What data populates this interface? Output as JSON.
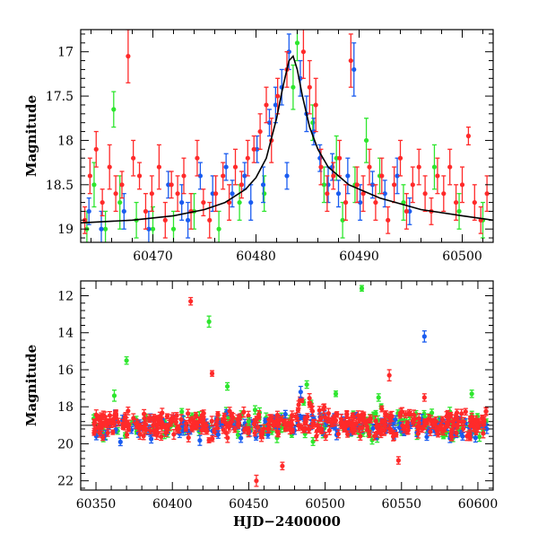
{
  "chart_data": [
    {
      "type": "scatter",
      "title": "",
      "xlabel": "",
      "ylabel": "Magnitude",
      "xlim": [
        60463,
        60503
      ],
      "ylim": [
        19.15,
        16.75
      ],
      "y_inverted": true,
      "grid": false,
      "xticks": [
        60470,
        60480,
        60490,
        60500
      ],
      "yticks": [
        17,
        17.5,
        18,
        18.5,
        19
      ],
      "series": [
        {
          "color": "#ff2a2a",
          "points": [
            [
              60463.4,
              18.9,
              0.15
            ],
            [
              60463.9,
              18.4,
              0.2
            ],
            [
              60464.5,
              18.1,
              0.2
            ],
            [
              60465.1,
              18.7,
              0.15
            ],
            [
              60465.8,
              18.3,
              0.25
            ],
            [
              60466.4,
              18.6,
              0.2
            ],
            [
              60467.0,
              18.5,
              0.15
            ],
            [
              60467.6,
              17.05,
              0.3
            ],
            [
              60468.1,
              18.2,
              0.2
            ],
            [
              60468.7,
              18.4,
              0.15
            ],
            [
              60469.3,
              18.8,
              0.2
            ],
            [
              60469.9,
              18.6,
              0.2
            ],
            [
              60470.6,
              18.3,
              0.25
            ],
            [
              60471.2,
              18.9,
              0.2
            ],
            [
              60471.8,
              18.5,
              0.15
            ],
            [
              60472.4,
              18.6,
              0.2
            ],
            [
              60473.0,
              18.4,
              0.2
            ],
            [
              60473.7,
              18.8,
              0.2
            ],
            [
              60474.3,
              18.2,
              0.2
            ],
            [
              60474.9,
              18.7,
              0.15
            ],
            [
              60475.5,
              18.9,
              0.2
            ],
            [
              60476.1,
              18.6,
              0.2
            ],
            [
              60476.8,
              18.4,
              0.15
            ],
            [
              60477.4,
              18.7,
              0.2
            ],
            [
              60478.0,
              18.3,
              0.2
            ],
            [
              60478.6,
              18.5,
              0.15
            ],
            [
              60479.2,
              18.2,
              0.2
            ],
            [
              60479.8,
              18.1,
              0.15
            ],
            [
              60480.4,
              17.9,
              0.2
            ],
            [
              60481.0,
              17.6,
              0.2
            ],
            [
              60481.5,
              18.0,
              0.25
            ],
            [
              60482.1,
              17.5,
              0.2
            ],
            [
              60483.0,
              17.2,
              0.2
            ],
            [
              60484.6,
              17.0,
              0.3
            ],
            [
              60485.2,
              17.4,
              0.3
            ],
            [
              60485.8,
              17.6,
              0.3
            ],
            [
              60486.3,
              18.3,
              0.2
            ],
            [
              60486.9,
              18.6,
              0.2
            ],
            [
              60487.5,
              18.4,
              0.15
            ],
            [
              60488.1,
              18.2,
              0.2
            ],
            [
              60488.7,
              18.7,
              0.2
            ],
            [
              60489.2,
              17.1,
              0.3
            ],
            [
              60489.8,
              18.5,
              0.2
            ],
            [
              60490.4,
              18.6,
              0.2
            ],
            [
              60491.0,
              18.3,
              0.2
            ],
            [
              60491.6,
              18.7,
              0.2
            ],
            [
              60492.2,
              18.4,
              0.2
            ],
            [
              60492.8,
              18.9,
              0.15
            ],
            [
              60493.4,
              18.5,
              0.2
            ],
            [
              60494.0,
              18.2,
              0.2
            ],
            [
              60494.6,
              18.8,
              0.2
            ],
            [
              60495.2,
              18.5,
              0.2
            ],
            [
              60495.8,
              18.3,
              0.2
            ],
            [
              60496.4,
              18.6,
              0.2
            ],
            [
              60497.0,
              18.8,
              0.15
            ],
            [
              60497.6,
              18.4,
              0.2
            ],
            [
              60498.2,
              18.6,
              0.2
            ],
            [
              60498.8,
              18.3,
              0.2
            ],
            [
              60499.4,
              18.7,
              0.2
            ],
            [
              60500.0,
              18.5,
              0.2
            ],
            [
              60500.6,
              17.95,
              0.1
            ],
            [
              60501.2,
              18.7,
              0.2
            ],
            [
              60501.8,
              18.9,
              0.15
            ],
            [
              60502.4,
              18.6,
              0.2
            ]
          ]
        },
        {
          "color": "#2ee62e",
          "points": [
            [
              60463.6,
              19.0,
              0.2
            ],
            [
              60464.3,
              18.5,
              0.25
            ],
            [
              60465.4,
              19.0,
              0.2
            ],
            [
              60466.2,
              17.65,
              0.2
            ],
            [
              60466.8,
              18.7,
              0.3
            ],
            [
              60468.4,
              18.9,
              0.2
            ],
            [
              60470.0,
              19.0,
              0.25
            ],
            [
              60472.0,
              19.0,
              0.2
            ],
            [
              60474.0,
              18.8,
              0.2
            ],
            [
              60476.4,
              19.0,
              0.2
            ],
            [
              60478.4,
              18.7,
              0.2
            ],
            [
              60480.8,
              18.6,
              0.2
            ],
            [
              60483.6,
              17.4,
              0.25
            ],
            [
              60484.0,
              16.9,
              0.2
            ],
            [
              60485.5,
              17.8,
              0.2
            ],
            [
              60486.6,
              18.5,
              0.2
            ],
            [
              60487.8,
              18.2,
              0.25
            ],
            [
              60488.4,
              18.9,
              0.2
            ],
            [
              60489.6,
              18.5,
              0.2
            ],
            [
              60490.7,
              18.0,
              0.25
            ],
            [
              60492.0,
              18.4,
              0.2
            ],
            [
              60494.3,
              18.7,
              0.2
            ],
            [
              60497.3,
              18.3,
              0.25
            ],
            [
              60499.7,
              18.8,
              0.2
            ],
            [
              60502.0,
              18.9,
              0.2
            ]
          ]
        },
        {
          "color": "#1a5cf0",
          "points": [
            [
              60463.8,
              18.8,
              0.15
            ],
            [
              60465.0,
              19.0,
              0.2
            ],
            [
              60467.2,
              18.8,
              0.2
            ],
            [
              60469.6,
              19.0,
              0.2
            ],
            [
              60471.5,
              18.5,
              0.15
            ],
            [
              60472.8,
              18.7,
              0.2
            ],
            [
              60473.4,
              18.9,
              0.2
            ],
            [
              60474.6,
              18.4,
              0.15
            ],
            [
              60475.8,
              18.6,
              0.2
            ],
            [
              60477.1,
              18.3,
              0.15
            ],
            [
              60477.7,
              18.6,
              0.15
            ],
            [
              60478.9,
              18.4,
              0.15
            ],
            [
              60479.5,
              18.7,
              0.2
            ],
            [
              60480.1,
              18.1,
              0.15
            ],
            [
              60480.7,
              18.5,
              0.2
            ],
            [
              60481.3,
              17.8,
              0.15
            ],
            [
              60481.9,
              17.6,
              0.2
            ],
            [
              60482.5,
              17.4,
              0.2
            ],
            [
              60483.0,
              18.4,
              0.15
            ],
            [
              60483.2,
              17.0,
              0.2
            ],
            [
              60484.3,
              17.3,
              0.2
            ],
            [
              60484.9,
              17.7,
              0.2
            ],
            [
              60485.6,
              17.9,
              0.15
            ],
            [
              60486.2,
              18.2,
              0.15
            ],
            [
              60487.0,
              18.5,
              0.2
            ],
            [
              60487.4,
              18.3,
              0.15
            ],
            [
              60488.0,
              18.6,
              0.15
            ],
            [
              60488.9,
              18.4,
              0.2
            ],
            [
              60489.5,
              17.2,
              0.3
            ],
            [
              60490.1,
              18.7,
              0.2
            ],
            [
              60491.3,
              18.5,
              0.15
            ],
            [
              60492.5,
              18.6,
              0.15
            ],
            [
              60493.7,
              18.4,
              0.2
            ],
            [
              60494.9,
              18.8,
              0.15
            ]
          ]
        }
      ],
      "model_curve": {
        "color": "#000000",
        "x": [
          60463,
          60468,
          60472,
          60475,
          60477,
          60479,
          60480,
          60481,
          60482,
          60482.6,
          60483.2,
          60483.6,
          60484.0,
          60484.5,
          60485.2,
          60486,
          60487,
          60489,
          60492,
          60496,
          60500,
          60503
        ],
        "y": [
          18.93,
          18.9,
          18.85,
          18.78,
          18.7,
          18.55,
          18.42,
          18.2,
          17.75,
          17.4,
          17.1,
          17.05,
          17.2,
          17.5,
          17.85,
          18.1,
          18.3,
          18.5,
          18.65,
          18.78,
          18.85,
          18.9
        ]
      }
    },
    {
      "type": "scatter",
      "title": "",
      "xlabel": "HJD−2400000",
      "ylabel": "Magnitude",
      "xlim": [
        60340,
        60610
      ],
      "ylim": [
        22.5,
        11.2
      ],
      "y_inverted": true,
      "grid": false,
      "xticks": [
        60350,
        60400,
        60450,
        60500,
        60550,
        60600
      ],
      "yticks": [
        12,
        14,
        16,
        18,
        20,
        22
      ],
      "reference_line": {
        "y": 19.0,
        "color": "#000000"
      },
      "series": [
        {
          "color": "#ff2a2a",
          "band_center": 18.9,
          "band_spread": 0.6,
          "outliers": [
            [
              60412,
              12.3,
              0.2
            ],
            [
              60426,
              16.2,
              0.15
            ],
            [
              60455,
              22.0,
              0.3
            ],
            [
              60472,
              21.2,
              0.2
            ],
            [
              60542,
              16.3,
              0.3
            ],
            [
              60548,
              20.9,
              0.2
            ],
            [
              60565,
              17.5,
              0.2
            ],
            [
              60604,
              18.7,
              0.15
            ]
          ]
        },
        {
          "color": "#2ee62e",
          "band_center": 19.0,
          "band_spread": 0.6,
          "outliers": [
            [
              60362,
              17.4,
              0.3
            ],
            [
              60370,
              15.5,
              0.2
            ],
            [
              60424,
              13.4,
              0.3
            ],
            [
              60436,
              16.9,
              0.2
            ],
            [
              60450,
              18.8,
              0.2
            ],
            [
              60488,
              16.8,
              0.2
            ],
            [
              60507,
              17.3,
              0.15
            ],
            [
              60524,
              11.6,
              0.15
            ],
            [
              60535,
              17.5,
              0.2
            ],
            [
              60596,
              17.3,
              0.2
            ]
          ]
        },
        {
          "color": "#1a5cf0",
          "band_center": 19.1,
          "band_spread": 0.5,
          "outliers": [
            [
              60366,
              19.9,
              0.2
            ],
            [
              60430,
              19.5,
              0.2
            ],
            [
              60474,
              18.4,
              0.2
            ],
            [
              60484,
              17.2,
              0.3
            ],
            [
              60565,
              14.2,
              0.3
            ],
            [
              60590,
              19.6,
              0.2
            ]
          ]
        }
      ]
    }
  ]
}
